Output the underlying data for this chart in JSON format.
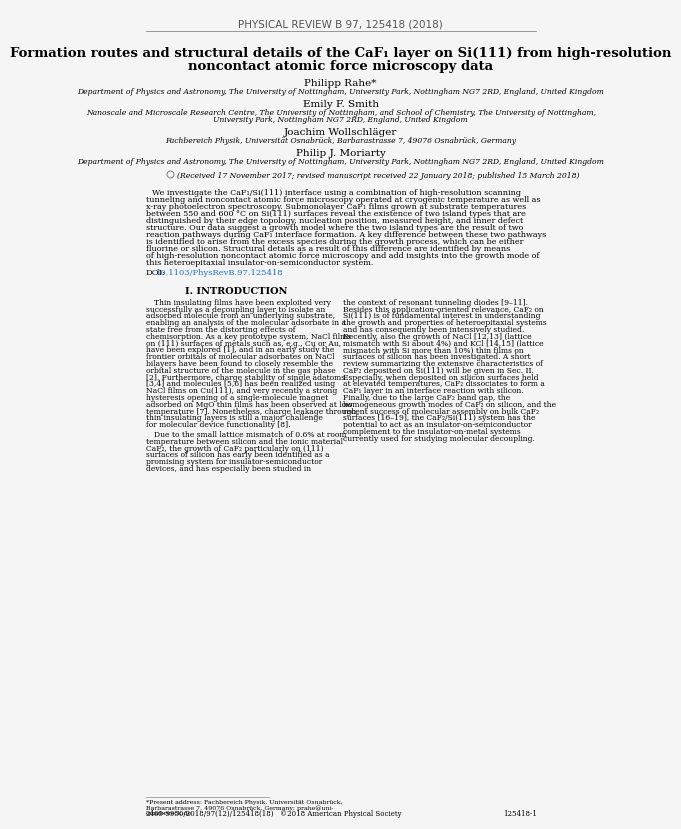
{
  "background_color": "#f5f5f5",
  "journal_header": "PHYSICAL REVIEW B 97, 125418 (2018)",
  "title_line1": "Formation routes and structural details of the CaF",
  "title_sub": "1",
  "title_line1_end": " layer on Si(111) from high-resolution",
  "title_line2": "noncontact atomic force microscopy data",
  "authors": [
    {
      "name": "Philipp Rahe",
      "superscript": "*",
      "affiliation": "Department of Physics and Astronomy, The University of Nottingham, University Park, Nottingham NG7 2RD, England, United Kingdom"
    },
    {
      "name": "Emily F. Smith",
      "superscript": "",
      "affiliation": "Nanoscale and Microscale Research Centre, The University of Nottingham, and School of Chemistry, The University of Nottingham,\nUniversity Park, Nottingham NG7 2RD, England, United Kingdom"
    },
    {
      "name": "Joachim Wollschläger",
      "superscript": "",
      "affiliation": "Fachbereich Physik, Universität Osnabrück, Barbarastrasse 7, 49076 Osnabrück, Germany"
    },
    {
      "name": "Philip J. Moriarty",
      "superscript": "",
      "affiliation": "Department of Physics and Astronomy, The University of Nottingham, University Park, Nottingham NG7 2RD, England, United Kingdom"
    }
  ],
  "received_text": "(Received 17 November 2017; revised manuscript received 22 January 2018; published 15 March 2018)",
  "abstract_text": "We investigate the CaF₁/Si(111) interface using a combination of high-resolution scanning tunneling and noncontact atomic force microscopy operated at cryogenic temperature as well as x-ray photoelectron spectroscopy. Submonolayer CaF₁ films grown at substrate temperatures between 550 and 600 °C on Si(111) surfaces reveal the existence of two island types that are distinguished by their edge topology, nucleation position, measured height, and inner defect structure. Our data suggest a growth model where the two island types are the result of two reaction pathways during CaF₁ interface formation. A key difference between these two pathways is identified to arise from the excess species during the growth process, which can be either fluorine or silicon. Structural details as a result of this difference are identified by means of high-resolution noncontact atomic force microscopy and add insights into the growth mode of this heteroepitaxial insulator-on-semiconductor system.",
  "doi_label": "DOI:",
  "doi_link": "10.1103/PhysRevB.97.125418",
  "doi_color": "#1a6ecf",
  "section_title": "I. INTRODUCTION",
  "intro_left": "Thin insulating films have been exploited very successfully as a decoupling layer to isolate an adsorbed molecule from an underlying substrate, enabling an analysis of the molecular adsorbate in a state free from the distorting effects of chemisorption. As a key prototype system, NaCl films on (111) surfaces of metals such as, e.g., Cu or Au, have been explored [1], and in an early study the frontier orbitals of molecular adsorbates on NaCl bilayers have been found to closely resemble the orbital structure of the molecule in the gas phase [2]. Furthermore, charge stability of single adatoms [3,4] and molecules [5,6] has been realized using NaCl films on Cu(111), and very recently a strong hysteresis opening of a single-molecule magnet adsorbed on MgO thin films has been observed at low temperature [7]. Nonetheless, charge leakage through thin insulating layers is still a major challenge for molecular device functionality [8].",
  "intro_right": "the context of resonant tunneling diodes [9–11]. Besides this application-oriented relevance, CaF₂ on Si(111) is of fundamental interest in understanding the growth and properties of heteroepitaxial systems and has consequently been intensively studied. Recently, also the growth of NaCl [12,13] (lattice mismatch with Si about 4%) and KCl [14,15] (lattice mismatch with Si more than 10%) thin films on surfaces of silicon has been investigated. A short review summarizing the extensive characteristics of CaF₂ deposited on Si(111) will be given in Sec. II. Especially, when deposited on silicon surfaces held at elevated temperatures, CaF₂ dissociates to form a CaF₁ layer in an interface reaction with silicon. Finally, due to the large CaF₂ band gap, the homogeneous growth modes of CaF₂ on silicon, and the recent success of molecular assembly on bulk CaF₂ surfaces [16–19], the CaF₂/Si(111) system has the potential to act as an insulator-on-semiconductor complement to the insulator-on-metal systems currently used for studying molecular decoupling.",
  "intro_right2": "Due to the small lattice mismatch of 0.6% at room temperature between silicon and the ionic material CaF₂, the growth of CaF₂ particularly on (111) surfaces of silicon has early been identified as a promising system for insulator-semiconductor devices, and has especially been studied in",
  "footnote": "*Present address: Fachbereich Physik, Universität Osnabrück, Barbarastrasse 7, 49076 Osnabrück, Germany; prahe@uni-osnabrueck.de",
  "page_left": "2469-9950/2018/97(12)/125418(18)",
  "page_right": "125418-1",
  "copyright": "©2018 American Physical Society",
  "text_color": "#000000",
  "header_color": "#555555",
  "line_color": "#888888"
}
